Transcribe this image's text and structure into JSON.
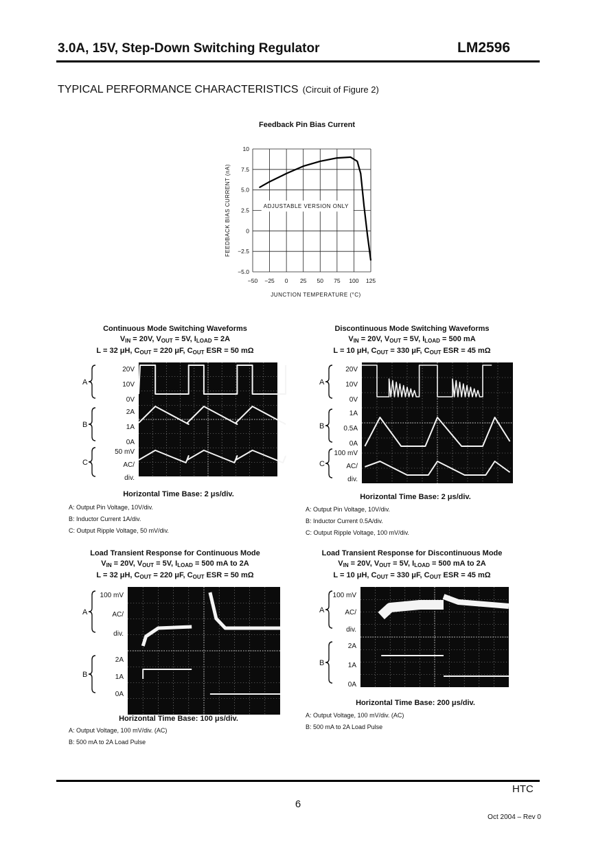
{
  "header": {
    "title": "3.0A, 15V, Step-Down Switching Regulator",
    "part": "LM2596"
  },
  "section": {
    "title": "TYPICAL PERFORMANCE CHARACTERISTICS",
    "note": "(Circuit of Figure 2)"
  },
  "chart_data": {
    "type": "line",
    "title": "Feedback Pin Bias Current",
    "xlabel": "JUNCTION TEMPERATURE (°C)",
    "ylabel": "FEEDBACK BIAS CURRENT (nA)",
    "xlim": [
      -50,
      125
    ],
    "ylim": [
      -5.0,
      10
    ],
    "xticks": [
      -50,
      -25,
      0,
      25,
      50,
      75,
      100,
      125
    ],
    "xtick_labels": [
      "−50",
      "−25",
      "0",
      "25",
      "50",
      "75",
      "100",
      "125"
    ],
    "yticks": [
      10,
      7.5,
      5.0,
      2.5,
      0,
      -2.5,
      -5.0
    ],
    "ytick_labels": [
      "10",
      "7.5",
      "5.0",
      "2.5",
      "0",
      "−2.5",
      "−5.0"
    ],
    "grid": true,
    "annotation": "ADJUSTABLE VERSION ONLY",
    "x": [
      -40,
      -25,
      0,
      25,
      50,
      75,
      95,
      105,
      110,
      115,
      120,
      125
    ],
    "y": [
      5.3,
      6.0,
      7.0,
      7.9,
      8.5,
      8.9,
      9.0,
      8.5,
      7.0,
      3.0,
      -0.5,
      -3.6
    ]
  },
  "scopes": [
    {
      "title_lines": [
        [
          {
            "t": "Continuous Mode Switching Waveforms"
          }
        ],
        [
          {
            "t": "V"
          },
          {
            "s": "IN"
          },
          {
            "t": " = 20V, V"
          },
          {
            "s": "OUT"
          },
          {
            "t": " = 5V, I"
          },
          {
            "s": "LOAD"
          },
          {
            "t": " = 2A"
          }
        ],
        [
          {
            "t": "L = 32 μH, C"
          },
          {
            "s": "OUT"
          },
          {
            "t": " = 220 μF, C"
          },
          {
            "s": "OUT"
          },
          {
            "t": " ESR = 50 mΩ"
          }
        ]
      ],
      "channels": [
        {
          "name": "A",
          "levels": [
            "20V",
            "10V",
            "0V"
          ]
        },
        {
          "name": "B",
          "levels": [
            "2A",
            "1A",
            "0A"
          ]
        },
        {
          "name": "C",
          "levels": [
            "50 mV",
            "AC/",
            "div."
          ]
        }
      ],
      "time_base": "Horizontal Time Base: 2 μs/div.",
      "captions": [
        "A: Output Pin Voltage, 10V/div.",
        "B: Inductor Current 1A/div.",
        "C: Output Ripple Voltage, 50 mV/div."
      ]
    },
    {
      "title_lines": [
        [
          {
            "t": "Discontinuous Mode Switching Waveforms"
          }
        ],
        [
          {
            "t": "V"
          },
          {
            "s": "IN"
          },
          {
            "t": " = 20V, V"
          },
          {
            "s": "OUT"
          },
          {
            "t": " = 5V, I"
          },
          {
            "s": "LOAD"
          },
          {
            "t": " = 500 mA"
          }
        ],
        [
          {
            "t": "L = 10 μH, C"
          },
          {
            "s": "OUT"
          },
          {
            "t": " = 330 μF, C"
          },
          {
            "s": "OUT"
          },
          {
            "t": " ESR = 45 mΩ"
          }
        ]
      ],
      "channels": [
        {
          "name": "A",
          "levels": [
            "20V",
            "10V",
            "0V"
          ]
        },
        {
          "name": "B",
          "levels": [
            "1A",
            "0.5A",
            "0A"
          ]
        },
        {
          "name": "C",
          "levels": [
            "100 mV",
            "AC/",
            "div."
          ]
        }
      ],
      "time_base": "Horizontal Time Base: 2 μs/div.",
      "captions": [
        "A: Output Pin Voltage, 10V/div.",
        "B: Inductor Current 0.5A/div.",
        "C: Output Ripple Voltage, 100 mV/div."
      ]
    },
    {
      "title_lines": [
        [
          {
            "t": "Load Transient Response for Continuous Mode"
          }
        ],
        [
          {
            "t": "V"
          },
          {
            "s": "IN"
          },
          {
            "t": " = 20V, V"
          },
          {
            "s": "OUT"
          },
          {
            "t": " = 5V, I"
          },
          {
            "s": "LOAD"
          },
          {
            "t": " = 500 mA to 2A"
          }
        ],
        [
          {
            "t": "L = 32 μH, C"
          },
          {
            "s": "OUT"
          },
          {
            "t": " = 220 μF, C"
          },
          {
            "s": "OUT"
          },
          {
            "t": " ESR = 50 mΩ"
          }
        ]
      ],
      "channels": [
        {
          "name": "A",
          "levels": [
            "100 mV",
            "AC/",
            "div."
          ]
        },
        {
          "name": "B",
          "levels": [
            "2A",
            "1A",
            "0A"
          ]
        }
      ],
      "time_base": "Horizontal Time Base: 100 μs/div.",
      "captions": [
        "A: Output Voltage, 100 mV/div. (AC)",
        "B: 500 mA to 2A Load Pulse"
      ]
    },
    {
      "title_lines": [
        [
          {
            "t": "Load Transient Response for Discontinuous Mode"
          }
        ],
        [
          {
            "t": "V"
          },
          {
            "s": "IN"
          },
          {
            "t": " = 20V, V"
          },
          {
            "s": "OUT"
          },
          {
            "t": " = 5V, I"
          },
          {
            "s": "LOAD"
          },
          {
            "t": " = 500 mA to 2A"
          }
        ],
        [
          {
            "t": "L = 10 μH, C"
          },
          {
            "s": "OUT"
          },
          {
            "t": " = 330 μF, C"
          },
          {
            "s": "OUT"
          },
          {
            "t": " ESR = 45 mΩ"
          }
        ]
      ],
      "channels": [
        {
          "name": "A",
          "levels": [
            "100 mV",
            "AC/",
            "div."
          ]
        },
        {
          "name": "B",
          "levels": [
            "2A",
            "1A",
            "0A"
          ]
        }
      ],
      "time_base": "Horizontal Time Base: 200 μs/div.",
      "captions": [
        "A: Output Voltage, 100 mV/div. (AC)",
        "B: 500 mA to 2A Load Pulse"
      ]
    }
  ],
  "footer": {
    "company": "HTC",
    "page": "6",
    "revision": "Oct 2004 – Rev 0"
  }
}
